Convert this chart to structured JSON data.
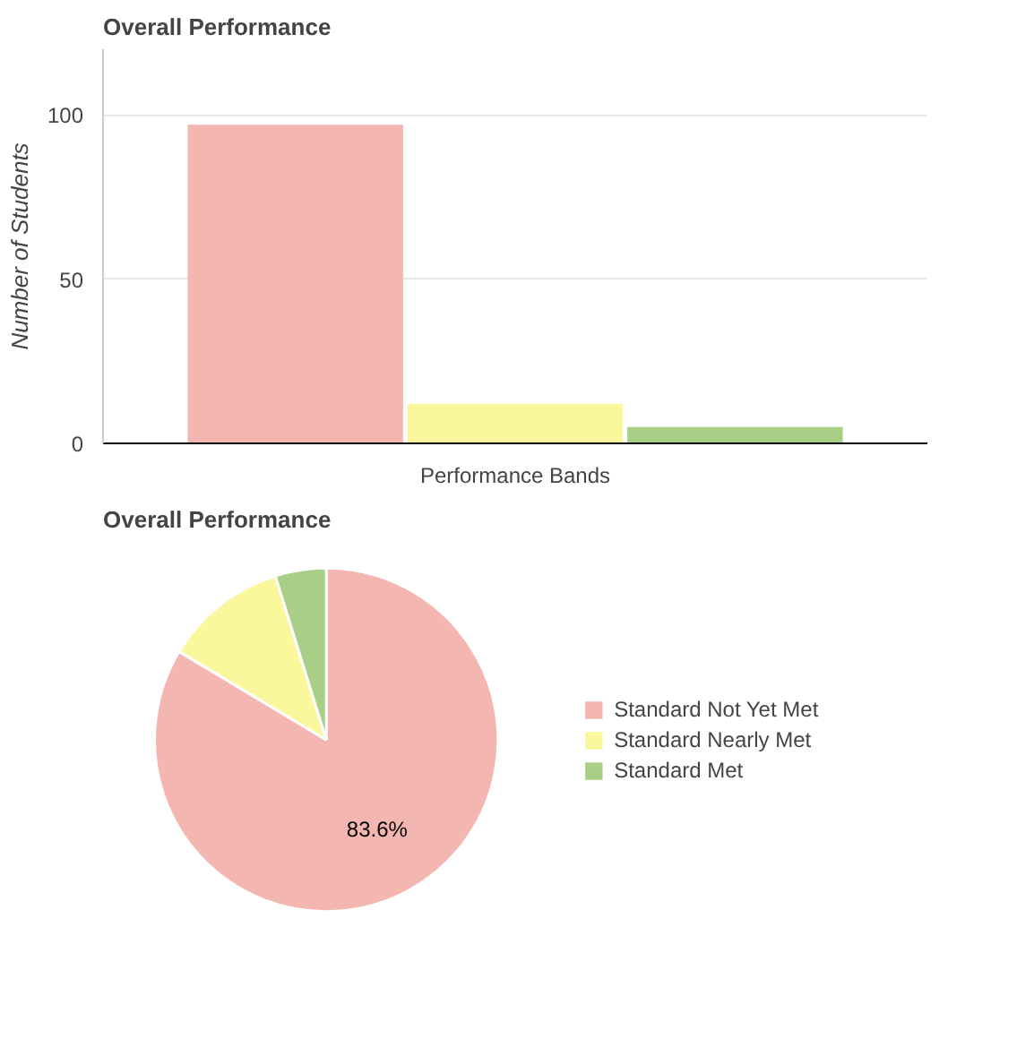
{
  "chart_data": [
    {
      "type": "bar",
      "title": "Overall Performance",
      "ylabel": "Number of Students",
      "categories": [
        "Performance Bands"
      ],
      "series": [
        {
          "color": "#f4b6b0",
          "values": [
            97
          ]
        },
        {
          "color": "#fbf79c",
          "values": [
            12
          ]
        },
        {
          "color": "#a9cf86",
          "values": [
            5
          ]
        }
      ],
      "ylim": [
        0,
        120
      ],
      "yticks": [
        0,
        50,
        100
      ],
      "grid": "y"
    },
    {
      "type": "pie",
      "title": "Overall Performance",
      "categories": [
        "Standard Not Yet Met",
        "Standard Nearly Met",
        "Standard Met"
      ],
      "values": [
        83.6,
        11.6,
        4.8
      ],
      "colors": [
        "#f4b6b0",
        "#fbf79c",
        "#a9cf86"
      ],
      "value_labels": [
        "83.6%",
        null,
        null
      ],
      "legend": "right"
    }
  ]
}
